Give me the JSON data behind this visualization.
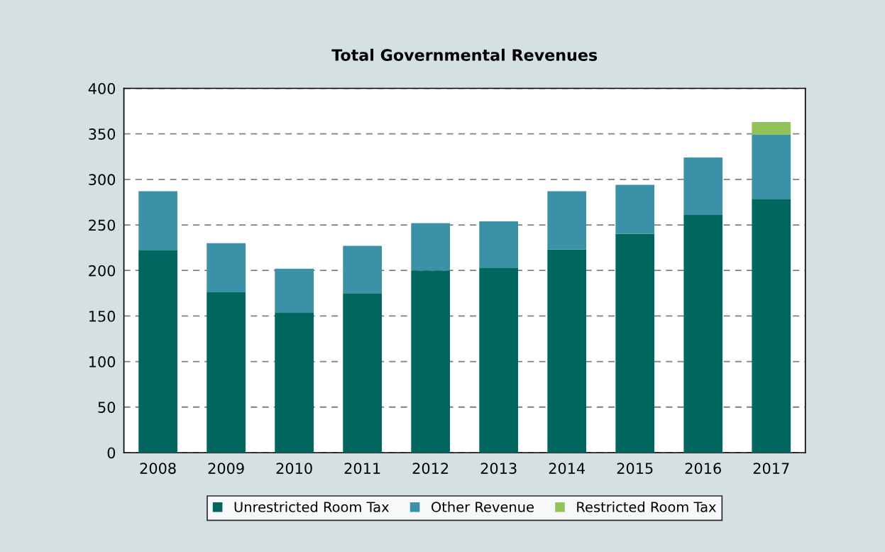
{
  "chart_data": {
    "type": "bar",
    "title": "Total Governmental Revenues",
    "stacked": true,
    "categories": [
      "2008",
      "2009",
      "2010",
      "2011",
      "2012",
      "2013",
      "2014",
      "2015",
      "2016",
      "2017"
    ],
    "series": [
      {
        "name": "Unrestricted Room Tax",
        "color": "#00665e",
        "values": [
          222,
          176,
          154,
          175,
          200,
          203,
          223,
          240,
          261,
          278
        ]
      },
      {
        "name": "Other Revenue",
        "color": "#3a91a8",
        "values": [
          65,
          54,
          48,
          52,
          52,
          51,
          64,
          54,
          63,
          71
        ]
      },
      {
        "name": "Restricted Room Tax",
        "color": "#92c25a",
        "values": [
          null,
          null,
          null,
          null,
          null,
          null,
          null,
          null,
          null,
          14
        ]
      }
    ],
    "ylim": [
      0,
      400
    ],
    "yticks": [
      0,
      50,
      100,
      150,
      200,
      250,
      300,
      350,
      400
    ],
    "grid": "y",
    "line_style": "dashed",
    "legend": "bottom"
  }
}
